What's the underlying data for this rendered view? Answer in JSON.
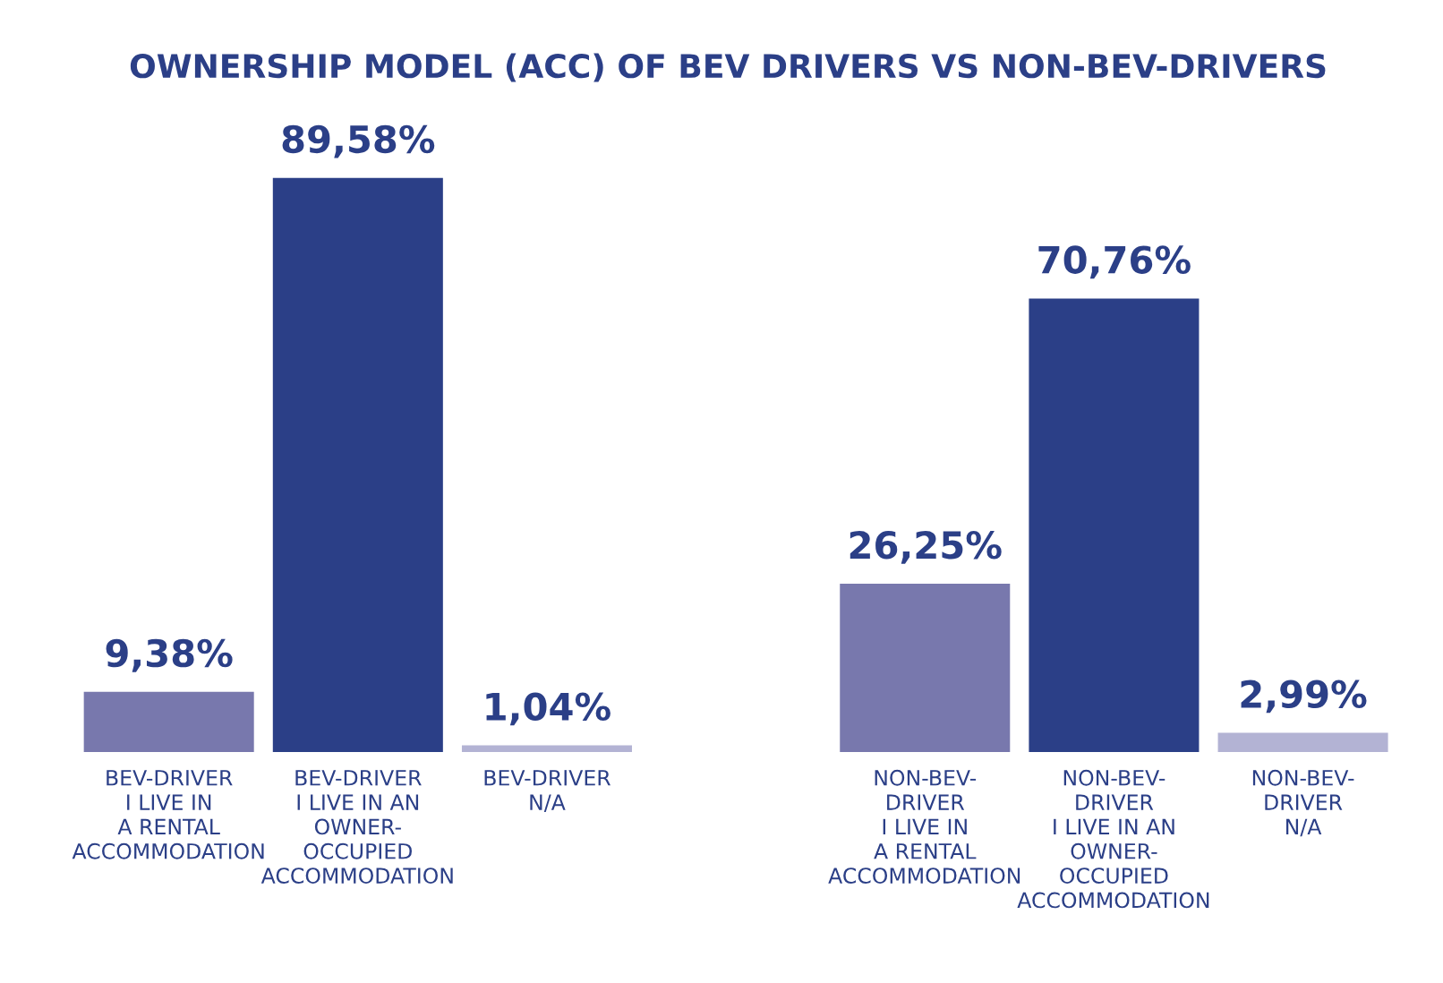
{
  "chart_data": {
    "type": "bar",
    "title": "OWNERSHIP MODEL (ACC) OF BEV DRIVERS VS NON-BEV-DRIVERS",
    "categories": [
      "BEV-DRIVER\nI LIVE IN\nA RENTAL\nACCOMMODATION",
      "BEV-DRIVER\nI LIVE IN AN\nOWNER-\nOCCUPIED\nACCOMMODATION",
      "BEV-DRIVER\nN/A",
      null,
      "NON-BEV-\nDRIVER\nI LIVE IN\nA RENTAL\nACCOMMODATION",
      "NON-BEV-\nDRIVER\nI LIVE IN AN\nOWNER-\nOCCUPIED\nACCOMMODATION",
      "NON-BEV-\nDRIVER\nN/A"
    ],
    "values": [
      9.38,
      89.58,
      1.04,
      null,
      26.25,
      70.76,
      2.99
    ],
    "colors": [
      "#7878ad",
      "#2b3f87",
      "#b3b3d4",
      "#ffffff",
      "#7878ad",
      "#2b3f87",
      "#b3b3d4"
    ],
    "value_labels": [
      "9,38%",
      "89,58%",
      "1,04%",
      null,
      "26,25%",
      "70,76%",
      "2,99%"
    ],
    "grid": false,
    "legend": false
  }
}
